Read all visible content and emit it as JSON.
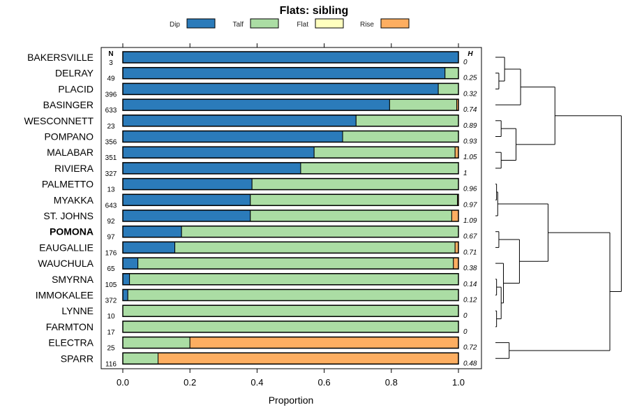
{
  "chart_data": {
    "type": "bar",
    "orientation": "horizontal",
    "stacked": true,
    "title": "Flats: sibling",
    "xlabel": "Proportion",
    "ylabel": "",
    "xlim": [
      0,
      1
    ],
    "xticks": [
      "0.0",
      "0.2",
      "0.4",
      "0.6",
      "0.8",
      "1.0"
    ],
    "xtick_values": [
      0,
      0.2,
      0.4,
      0.6,
      0.8,
      1.0
    ],
    "n_header": "N",
    "h_header": "H",
    "legend": [
      {
        "name": "Dip",
        "color": "#2b7bba"
      },
      {
        "name": "Talf",
        "color": "#abdda4"
      },
      {
        "name": "Flat",
        "color": "#ffffbf"
      },
      {
        "name": "Rise",
        "color": "#fdae61"
      }
    ],
    "bold_category": "POMONA",
    "rows": [
      {
        "name": "BAKERSVILLE",
        "n": "3",
        "h": "0",
        "values": [
          1.0,
          0.0,
          0.0,
          0.0
        ]
      },
      {
        "name": "DELRAY",
        "n": "49",
        "h": "0.25",
        "values": [
          0.96,
          0.04,
          0.0,
          0.0
        ]
      },
      {
        "name": "PLACID",
        "n": "396",
        "h": "0.32",
        "values": [
          0.94,
          0.06,
          0.0,
          0.0
        ]
      },
      {
        "name": "BASINGER",
        "n": "633",
        "h": "0.74",
        "values": [
          0.795,
          0.2,
          0.0,
          0.005
        ]
      },
      {
        "name": "WESCONNETT",
        "n": "23",
        "h": "0.89",
        "values": [
          0.695,
          0.305,
          0.0,
          0.0
        ]
      },
      {
        "name": "POMPANO",
        "n": "356",
        "h": "0.93",
        "values": [
          0.655,
          0.345,
          0.0,
          0.0
        ]
      },
      {
        "name": "MALABAR",
        "n": "351",
        "h": "1.05",
        "values": [
          0.57,
          0.42,
          0.0,
          0.01
        ]
      },
      {
        "name": "RIVIERA",
        "n": "327",
        "h": "1",
        "values": [
          0.53,
          0.47,
          0.0,
          0.0
        ]
      },
      {
        "name": "PALMETTO",
        "n": "13",
        "h": "0.96",
        "values": [
          0.385,
          0.615,
          0.0,
          0.0
        ]
      },
      {
        "name": "MYAKKA",
        "n": "643",
        "h": "0.97",
        "values": [
          0.38,
          0.617,
          0.0,
          0.003
        ]
      },
      {
        "name": "ST. JOHNS",
        "n": "92",
        "h": "1.09",
        "values": [
          0.38,
          0.6,
          0.0,
          0.02
        ]
      },
      {
        "name": "POMONA",
        "n": "97",
        "h": "0.67",
        "values": [
          0.175,
          0.825,
          0.0,
          0.0
        ]
      },
      {
        "name": "EAUGALLIE",
        "n": "176",
        "h": "0.71",
        "values": [
          0.155,
          0.835,
          0.0,
          0.01
        ]
      },
      {
        "name": "WAUCHULA",
        "n": "65",
        "h": "0.38",
        "values": [
          0.045,
          0.94,
          0.0,
          0.015
        ]
      },
      {
        "name": "SMYRNA",
        "n": "105",
        "h": "0.14",
        "values": [
          0.02,
          0.98,
          0.0,
          0.0
        ]
      },
      {
        "name": "IMMOKALEE",
        "n": "372",
        "h": "0.12",
        "values": [
          0.015,
          0.985,
          0.0,
          0.0
        ]
      },
      {
        "name": "LYNNE",
        "n": "10",
        "h": "0",
        "values": [
          0.0,
          1.0,
          0.0,
          0.0
        ]
      },
      {
        "name": "FARMTON",
        "n": "17",
        "h": "0",
        "values": [
          0.0,
          1.0,
          0.0,
          0.0
        ]
      },
      {
        "name": "ELECTRA",
        "n": "25",
        "h": "0.72",
        "values": [
          0.0,
          0.2,
          0.0,
          0.8
        ]
      },
      {
        "name": "SPARR",
        "n": "116",
        "h": "0.48",
        "values": [
          0.0,
          0.105,
          0.0,
          0.895
        ]
      }
    ],
    "dendrogram": {
      "description": "hierarchical clustering of rows (right side)",
      "merges": [
        {
          "left": "DELRAY",
          "right": "PLACID",
          "height": 0.03
        },
        {
          "left": "BAKERSVILLE",
          "right": "DELRAY+PLACID",
          "height": 0.08
        },
        {
          "left": "BAKERSVILLE+DELRAY+PLACID",
          "right": "BASINGER",
          "height": 0.22
        },
        {
          "left": "WESCONNETT",
          "right": "POMPANO",
          "height": 0.05
        },
        {
          "left": "MALABAR",
          "right": "RIVIERA",
          "height": 0.05
        },
        {
          "left": "WESCONNETT+POMPANO",
          "right": "MALABAR+RIVIERA",
          "height": 0.18
        },
        {
          "left": "TOP1",
          "right": "TOP2",
          "height": 0.52
        },
        {
          "left": "PALMETTO",
          "right": "MYAKKA",
          "height": 0.01
        },
        {
          "left": "PALMETTO+MYAKKA",
          "right": "ST. JOHNS",
          "height": 0.02
        },
        {
          "left": "POMONA",
          "right": "EAUGALLIE",
          "height": 0.03
        },
        {
          "left": "LYNNE",
          "right": "FARMTON",
          "height": 0.01
        },
        {
          "left": "SMYRNA",
          "right": "IMMOKALEE",
          "height": 0.01
        },
        {
          "left": "SMYRNA+IMMOKALEE",
          "right": "LYNNE+FARMTON",
          "height": 0.05
        },
        {
          "left": "WAUCHULA",
          "right": "SMYRNA+IMMOKALEE+LYNNE+FARMTON",
          "height": 0.07
        },
        {
          "left": "POMONA+EAUGALLIE",
          "right": "WAUCHULA+...",
          "height": 0.21
        },
        {
          "left": "PALMETTO+MYAKKA+ST. JOHNS",
          "right": "POMONA+...+FARMTON",
          "height": 0.46
        },
        {
          "left": "ELECTRA",
          "right": "SPARR",
          "height": 0.12
        },
        {
          "left": "PALMETTO+...+FARMTON",
          "right": "ELECTRA+SPARR",
          "height": 1.0
        },
        {
          "left": "BAKERSVILLE+...+RIVIERA",
          "right": "PALMETTO+...+SPARR",
          "height": 1.1
        }
      ]
    }
  }
}
